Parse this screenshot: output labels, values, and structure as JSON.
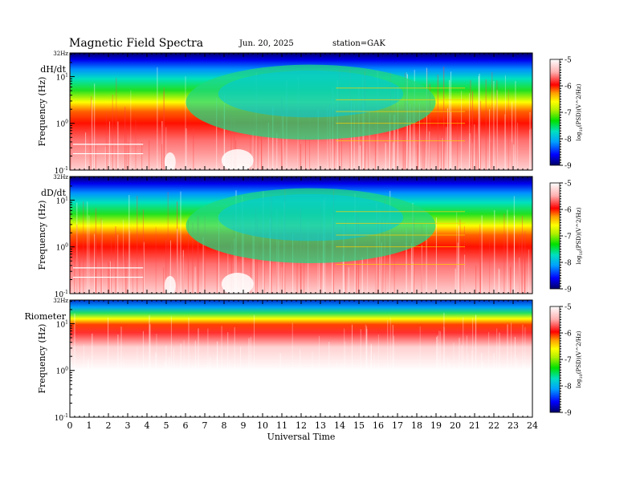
{
  "header": {
    "title": "Magnetic  Field  Spectra",
    "date": "Jun. 20, 2025",
    "station": "station=GAK"
  },
  "chart_data": {
    "type": "heatmap",
    "xlabel": "Universal Time",
    "x_ticks": [
      "0",
      "1",
      "2",
      "3",
      "4",
      "5",
      "6",
      "7",
      "8",
      "9",
      "10",
      "11",
      "12",
      "13",
      "14",
      "15",
      "16",
      "17",
      "18",
      "19",
      "20",
      "21",
      "22",
      "23",
      "24"
    ],
    "xlim": [
      0,
      24
    ],
    "ylabel": "Frequency  (Hz)",
    "y_scale": "log",
    "ylim": [
      0.1,
      32
    ],
    "y_ticks": [
      {
        "value": 0.1,
        "base": "10",
        "exp": "-1"
      },
      {
        "value": 1,
        "base": "10",
        "exp": "0"
      },
      {
        "value": 10,
        "base": "10",
        "exp": "1"
      }
    ],
    "y_top_label": "32Hz",
    "colorbar": {
      "label": "log(PSD)(V²/Hz)",
      "label_parts": {
        "pre": "log",
        "sub": "10",
        "post": "(PSD)(V^2/Hz)"
      },
      "range": [
        -9,
        -5
      ],
      "ticks": [
        "-5",
        "-6",
        "-7",
        "-8",
        "-9"
      ],
      "colors": [
        "#000066",
        "#0000ff",
        "#00a0ff",
        "#00e0c0",
        "#00e000",
        "#b0f000",
        "#ffff00",
        "#ffa000",
        "#ff0000",
        "#ffb0b0",
        "#ffffff"
      ]
    },
    "panels": [
      {
        "label": "dH/dt"
      },
      {
        "label": "dD/dt"
      },
      {
        "label": "Riometer"
      }
    ]
  }
}
